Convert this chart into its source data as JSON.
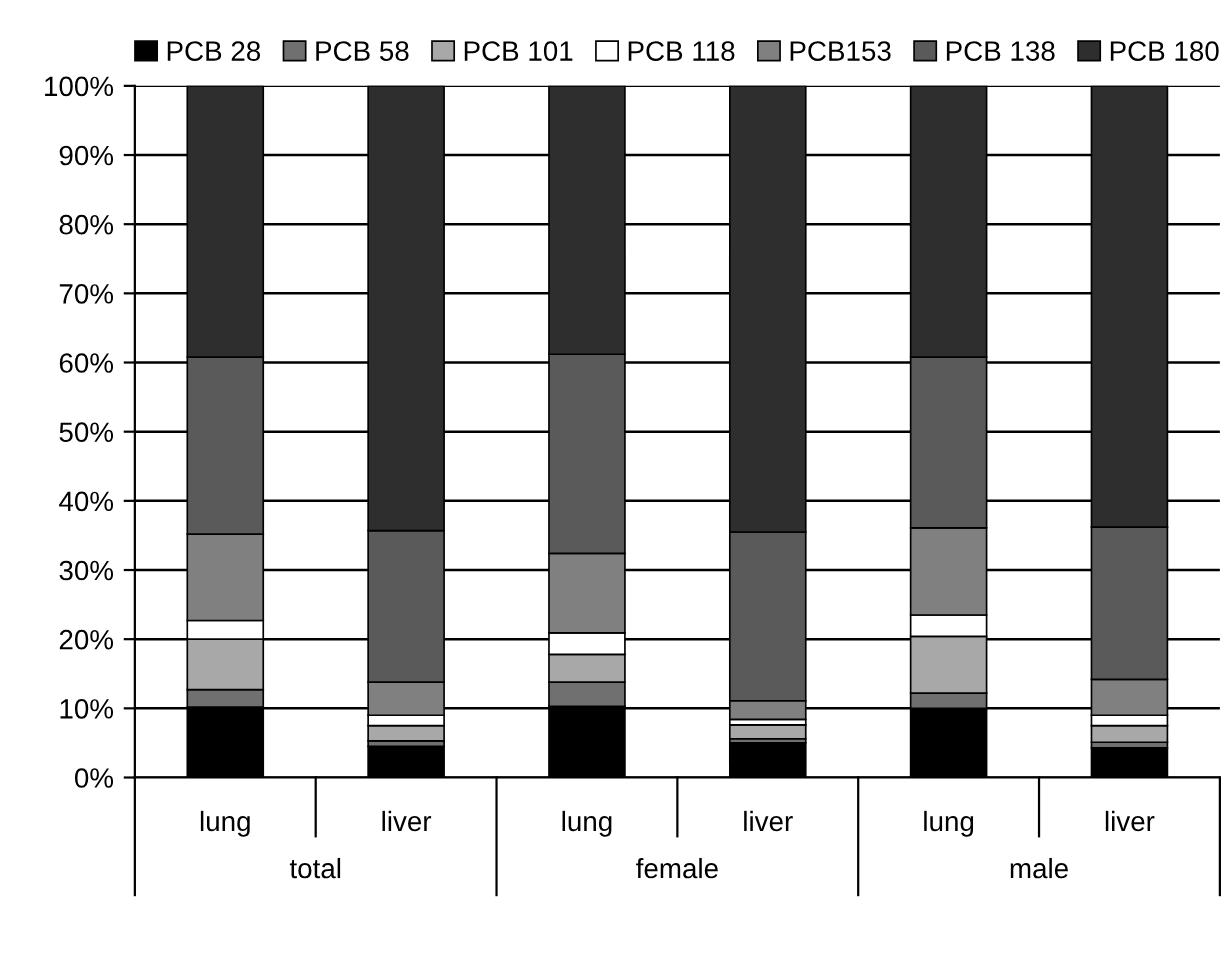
{
  "chart_data": {
    "type": "bar",
    "stacked": true,
    "categories": [
      "lung",
      "liver",
      "lung",
      "liver",
      "lung",
      "liver"
    ],
    "annotations": [
      "total",
      "female",
      "male"
    ],
    "series": [
      {
        "name": "PCB 28",
        "color": "#000000",
        "values": [
          10.2,
          4.5,
          10.3,
          5.0,
          10.0,
          4.3
        ]
      },
      {
        "name": "PCB 58",
        "color": "#707070",
        "values": [
          2.5,
          0.8,
          3.5,
          0.6,
          2.2,
          0.8
        ]
      },
      {
        "name": "PCB 101",
        "color": "#a8a8a8",
        "values": [
          7.3,
          2.2,
          4.0,
          2.0,
          8.2,
          2.4
        ]
      },
      {
        "name": "PCB 118",
        "color": "#ffffff",
        "values": [
          2.7,
          1.5,
          3.1,
          0.8,
          3.1,
          1.5
        ]
      },
      {
        "name": "PCB153",
        "color": "#808080",
        "values": [
          12.5,
          4.8,
          11.5,
          2.7,
          12.6,
          5.2
        ]
      },
      {
        "name": "PCB 138",
        "color": "#5a5a5a",
        "values": [
          25.6,
          21.9,
          28.8,
          24.4,
          24.7,
          22.0
        ]
      },
      {
        "name": "PCB 180",
        "color": "#2e2e2e",
        "values": [
          39.2,
          64.3,
          38.8,
          64.5,
          39.2,
          63.8
        ]
      }
    ],
    "ylim": [
      0,
      100
    ],
    "yticks": [
      {
        "value": 0,
        "label": "0%"
      },
      {
        "value": 10,
        "label": "10%"
      },
      {
        "value": 20,
        "label": "20%"
      },
      {
        "value": 30,
        "label": "30%"
      },
      {
        "value": 40,
        "label": "40%"
      },
      {
        "value": 50,
        "label": "50%"
      },
      {
        "value": 60,
        "label": "60%"
      },
      {
        "value": 70,
        "label": "70%"
      },
      {
        "value": 80,
        "label": "80%"
      },
      {
        "value": 90,
        "label": "90%"
      },
      {
        "value": 100,
        "label": "100%"
      }
    ],
    "grid": "y",
    "legend": "top"
  }
}
